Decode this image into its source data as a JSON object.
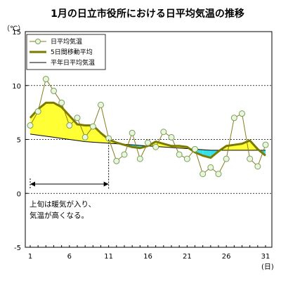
{
  "chart_data": {
    "type": "line",
    "title": "1月の日立市役所における日平均気温の推移",
    "y_unit": "（℃）",
    "x_unit": "(日)",
    "ylim": [
      -5,
      15
    ],
    "xlim": [
      1,
      31
    ],
    "y_ticks": [
      15,
      10,
      5,
      0,
      -5
    ],
    "x_ticks": [
      1,
      6,
      11,
      16,
      21,
      26,
      31
    ],
    "grid": "horizontal-dotted",
    "legend_position": "top-left",
    "days": [
      1,
      2,
      3,
      4,
      5,
      6,
      7,
      8,
      9,
      10,
      11,
      12,
      13,
      14,
      15,
      16,
      17,
      18,
      19,
      20,
      21,
      22,
      23,
      24,
      25,
      26,
      27,
      28,
      29,
      30,
      31
    ],
    "series": [
      {
        "name": "日平均気温",
        "values": [
          6.3,
          7.6,
          10.6,
          9.5,
          8.4,
          6.3,
          7.0,
          5.2,
          6.2,
          8.2,
          5.1,
          3.0,
          3.6,
          5.6,
          3.2,
          4.7,
          4.3,
          5.7,
          5.2,
          3.6,
          3.2,
          4.1,
          1.8,
          2.4,
          1.8,
          3.2,
          7.0,
          7.4,
          3.2,
          2.5,
          4.5
        ]
      },
      {
        "name": "5日間移動平均",
        "values": [
          7.0,
          7.8,
          8.4,
          8.4,
          8.0,
          7.2,
          6.4,
          6.3,
          6.3,
          5.6,
          5.0,
          4.7,
          4.5,
          4.3,
          4.2,
          4.4,
          4.8,
          4.6,
          4.4,
          4.4,
          4.3,
          3.8,
          3.5,
          3.3,
          3.9,
          4.4,
          4.5,
          4.6,
          4.9,
          4.1,
          3.5
        ]
      },
      {
        "name": "平年日平均気温",
        "values": [
          5.5,
          5.4,
          5.3,
          5.2,
          5.1,
          5.0,
          4.9,
          4.8,
          4.75,
          4.7,
          4.65,
          4.6,
          4.55,
          4.5,
          4.45,
          4.4,
          4.35,
          4.3,
          4.25,
          4.2,
          4.15,
          4.1,
          4.05,
          4.0,
          4.0,
          4.0,
          4.0,
          4.0,
          4.0,
          4.0,
          4.0
        ]
      }
    ],
    "annotation": {
      "lines": [
        "上旬は暖気が入り、",
        "気温が高くなる。"
      ],
      "span_days": [
        1,
        11
      ]
    },
    "colors": {
      "daily": "#8a7a1e",
      "marker_stroke": "#7aa05a",
      "marker_fill": "#e9f5dd",
      "moving_avg": "#7a7a00",
      "normal": "#000000",
      "warm_fill": "#ffff33",
      "cold_fill": "#33e0e8"
    }
  }
}
